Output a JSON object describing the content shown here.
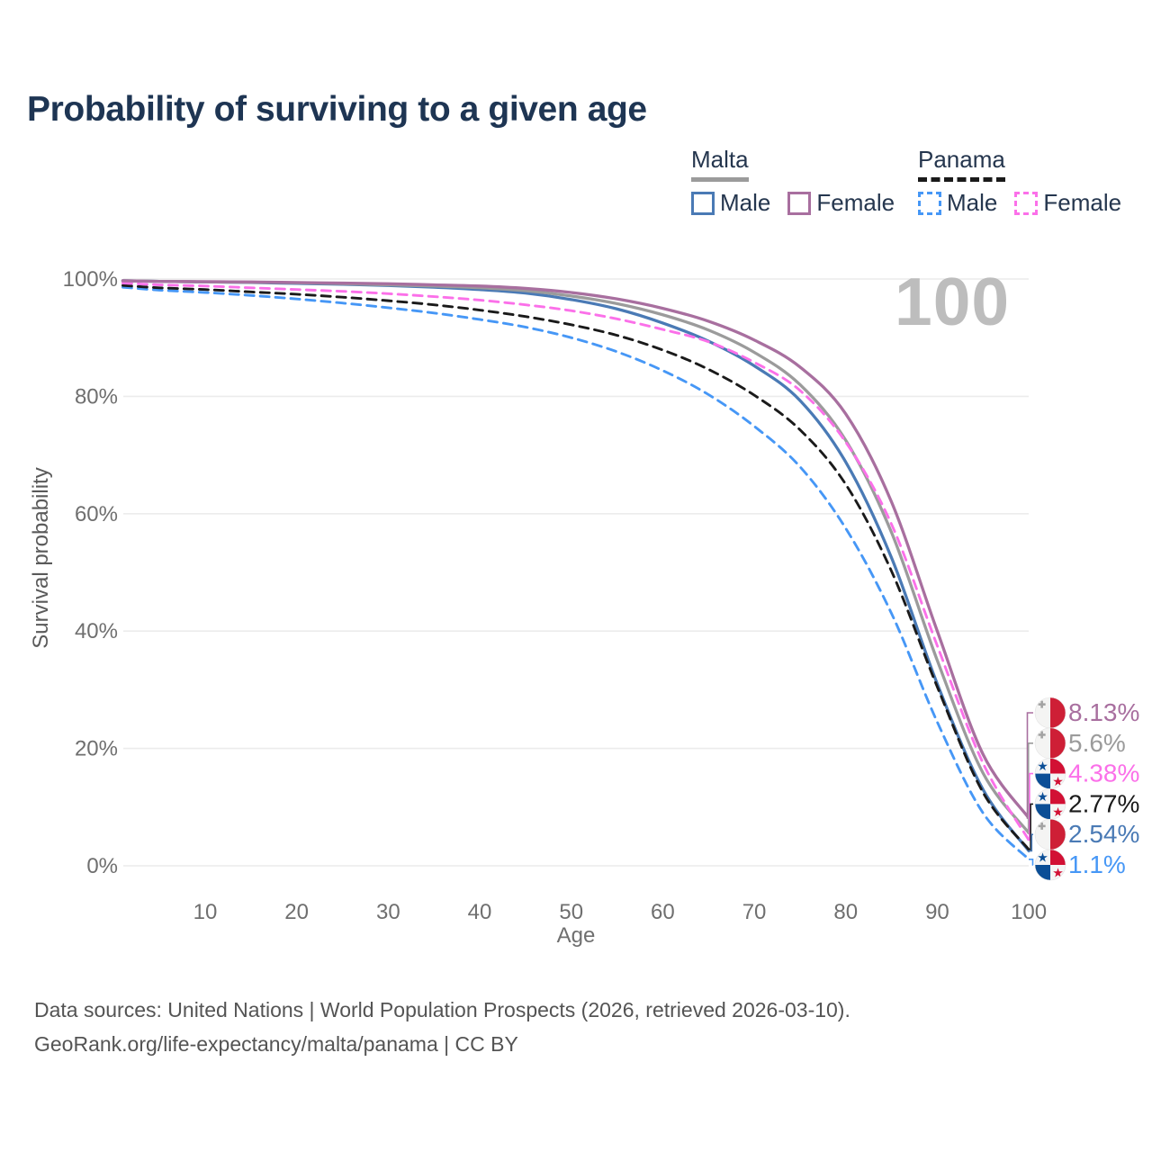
{
  "title": "Probability of surviving to a given age",
  "watermark_age": "100",
  "legend": {
    "groups": [
      {
        "label": "Malta",
        "line_style": "solid",
        "line_color": "#9b9b9b",
        "items": [
          {
            "label": "Male",
            "color": "#4a7ab5",
            "dashed": false
          },
          {
            "label": "Female",
            "color": "#a86f9f",
            "dashed": false
          }
        ]
      },
      {
        "label": "Panama",
        "line_style": "dashed",
        "line_color": "#1a1a1a",
        "items": [
          {
            "label": "Male",
            "color": "#4697f6",
            "dashed": true
          },
          {
            "label": "Female",
            "color": "#fb70e9",
            "dashed": true
          }
        ]
      }
    ]
  },
  "chart_data": {
    "type": "line",
    "title": "Probability of surviving to a given age",
    "xlabel": "Age",
    "ylabel": "Survival probability",
    "xlim": [
      1,
      100
    ],
    "ylim": [
      0,
      100
    ],
    "x_ticks": [
      10,
      20,
      30,
      40,
      50,
      60,
      70,
      80,
      90,
      100
    ],
    "y_ticks": [
      0,
      20,
      40,
      60,
      80,
      100
    ],
    "y_tick_suffix": "%",
    "grid": "horizontal",
    "legend_position": "top-right",
    "ages": [
      1,
      5,
      10,
      15,
      20,
      25,
      30,
      35,
      40,
      45,
      50,
      55,
      60,
      65,
      70,
      75,
      80,
      85,
      90,
      95,
      100
    ],
    "series": [
      {
        "name": "Malta Male",
        "country": "Malta",
        "sex": "Male",
        "color": "#4a7ab5",
        "dash": false,
        "flag": "malta",
        "end_label": "2.54%",
        "end_value": 2.54,
        "values": [
          99.7,
          99.6,
          99.5,
          99.4,
          99.25,
          99.1,
          98.9,
          98.6,
          98.2,
          97.6,
          96.5,
          94.9,
          92.5,
          89.4,
          85.2,
          79.3,
          68.8,
          52.5,
          31.0,
          13.0,
          2.54
        ]
      },
      {
        "name": "Malta",
        "country": "Malta",
        "sex": "Both",
        "color": "#9b9b9b",
        "dash": false,
        "flag": "malta",
        "end_label": "5.6%",
        "end_value": 5.6,
        "values": [
          99.7,
          99.6,
          99.5,
          99.45,
          99.35,
          99.2,
          99.0,
          98.8,
          98.5,
          98.0,
          97.1,
          95.8,
          93.9,
          91.3,
          87.5,
          82.0,
          72.5,
          56.8,
          35.0,
          15.8,
          5.6
        ]
      },
      {
        "name": "Panama Male",
        "country": "Panama",
        "sex": "Male",
        "color": "#4697f6",
        "dash": true,
        "flag": "panama",
        "end_label": "1.1%",
        "end_value": 1.1,
        "values": [
          98.6,
          98.1,
          97.7,
          97.2,
          96.6,
          95.9,
          95.1,
          94.2,
          93.1,
          91.8,
          90.0,
          87.6,
          84.4,
          80.3,
          74.9,
          68.0,
          57.5,
          43.0,
          24.5,
          9.0,
          1.1
        ]
      },
      {
        "name": "Panama",
        "country": "Panama",
        "sex": "Both",
        "color": "#1a1a1a",
        "dash": true,
        "flag": "panama",
        "end_label": "2.77%",
        "end_value": 2.77,
        "values": [
          98.9,
          98.5,
          98.2,
          97.8,
          97.4,
          96.9,
          96.3,
          95.6,
          94.7,
          93.6,
          92.2,
          90.4,
          87.9,
          84.6,
          80.2,
          74.3,
          65.0,
          50.2,
          30.5,
          12.5,
          2.77
        ]
      },
      {
        "name": "Panama Female",
        "country": "Panama",
        "sex": "Female",
        "color": "#fb70e9",
        "dash": true,
        "flag": "panama",
        "end_label": "4.38%",
        "end_value": 4.38,
        "values": [
          99.3,
          99.0,
          98.8,
          98.5,
          98.2,
          97.9,
          97.5,
          97.0,
          96.4,
          95.6,
          94.6,
          93.2,
          91.4,
          89.3,
          85.8,
          81.0,
          72.2,
          58.2,
          37.5,
          17.5,
          4.38
        ]
      },
      {
        "name": "Malta Female",
        "country": "Malta",
        "sex": "Female",
        "color": "#a86f9f",
        "dash": false,
        "flag": "malta",
        "end_label": "8.13%",
        "end_value": 8.13,
        "values": [
          99.7,
          99.6,
          99.55,
          99.5,
          99.4,
          99.3,
          99.2,
          99.0,
          98.8,
          98.4,
          97.7,
          96.6,
          95.0,
          92.8,
          89.6,
          85.0,
          77.0,
          62.0,
          40.0,
          19.0,
          8.13
        ]
      }
    ]
  },
  "flag_colors": {
    "malta_red": "#ce1f36",
    "malta_white": "#f4f4f3",
    "malta_cross_gray": "#a3a3a3",
    "panama_red": "#d21034",
    "panama_blue": "#0b4e96",
    "panama_white": "#f5f5f5"
  },
  "colors": {
    "title": "#1e3553",
    "grid": "#ececec",
    "tick_label": "#6f6f6f",
    "watermark": "#bdbdbd"
  },
  "footer": {
    "line1": "Data sources: United Nations | World Population Prospects (2026, retrieved 2026-03-10).",
    "line2": "GeoRank.org/life-expectancy/malta/panama | CC BY"
  }
}
